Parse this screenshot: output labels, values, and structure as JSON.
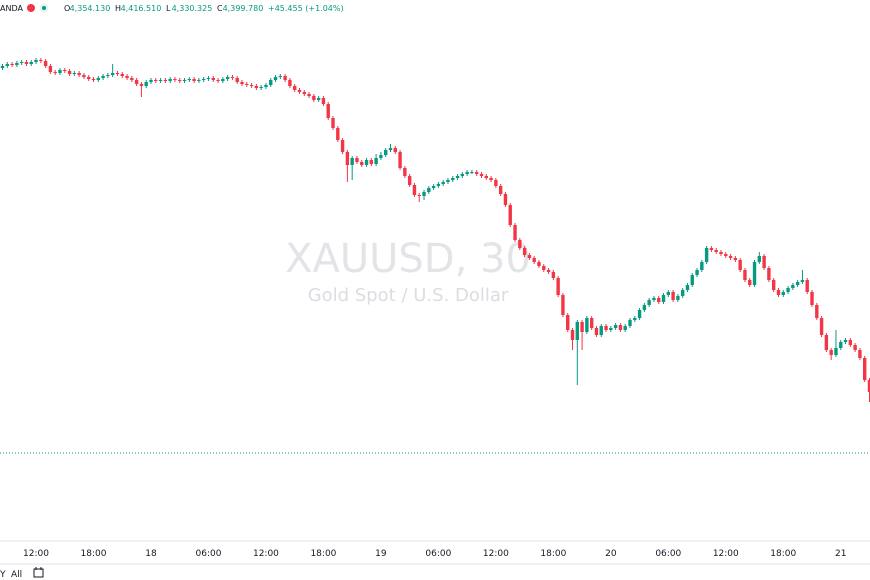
{
  "header": {
    "symbol": "ANDA",
    "ohlc": [
      {
        "label": "O",
        "value": "4,354.130"
      },
      {
        "label": "H",
        "value": "4,416.510"
      },
      {
        "label": "L",
        "value": "4,330.325"
      },
      {
        "label": "C",
        "value": "4,399.780"
      }
    ],
    "change": "+45.455 (+1.04%)"
  },
  "toolbar": {
    "left": "Y",
    "all": "All"
  },
  "chart_data": {
    "type": "candlestick",
    "title": "XAUUSD, 30",
    "subtitle": "Gold Spot / U.S. Dollar",
    "up_color": "#089981",
    "down_color": "#f23645",
    "ylim": [
      3960,
      4500
    ],
    "price_line": 4047,
    "price_line_color": "#089981",
    "categories": [
      null,
      null,
      null,
      null,
      null,
      null,
      null,
      "12:00",
      null,
      null,
      null,
      null,
      null,
      null,
      null,
      null,
      null,
      null,
      null,
      "18:00",
      null,
      null,
      null,
      null,
      null,
      null,
      null,
      null,
      null,
      null,
      null,
      "18",
      null,
      null,
      null,
      null,
      null,
      null,
      null,
      null,
      null,
      null,
      null,
      "06:00",
      null,
      null,
      null,
      null,
      null,
      null,
      null,
      null,
      null,
      null,
      null,
      "12:00",
      null,
      null,
      null,
      null,
      null,
      null,
      null,
      null,
      null,
      null,
      null,
      "18:00",
      null,
      null,
      null,
      null,
      null,
      null,
      null,
      null,
      null,
      null,
      null,
      "19",
      null,
      null,
      null,
      null,
      null,
      null,
      null,
      null,
      null,
      null,
      null,
      "06:00",
      null,
      null,
      null,
      null,
      null,
      null,
      null,
      null,
      null,
      null,
      null,
      "12:00",
      null,
      null,
      null,
      null,
      null,
      null,
      null,
      null,
      null,
      null,
      null,
      "18:00",
      null,
      null,
      null,
      null,
      null,
      null,
      null,
      null,
      null,
      null,
      null,
      "20",
      null,
      null,
      null,
      null,
      null,
      null,
      null,
      null,
      null,
      null,
      null,
      "06:00",
      null,
      null,
      null,
      null,
      null,
      null,
      null,
      null,
      null,
      null,
      null,
      "12:00",
      null,
      null,
      null,
      null,
      null,
      null,
      null,
      null,
      null,
      null,
      null,
      "18:00",
      null,
      null,
      null,
      null,
      null,
      null,
      null,
      null,
      null,
      null,
      null,
      "21",
      null,
      null,
      null,
      null,
      null,
      null
    ],
    "open": [
      4432,
      4434,
      4436,
      4435,
      4437,
      4438,
      4436,
      4438,
      4440,
      4439,
      4434,
      4428,
      4427,
      4430,
      4429,
      4426,
      4427,
      4425,
      4423,
      4421,
      4420,
      4422,
      4424,
      4425,
      4427,
      4426,
      4424,
      4422,
      4420,
      4416,
      4414,
      4418,
      4420,
      4419,
      4420,
      4419,
      4421,
      4420,
      4419,
      4420,
      4421,
      4419,
      4420,
      4421,
      4422,
      4420,
      4419,
      4421,
      4423,
      4422,
      4418,
      4416,
      4415,
      4414,
      4412,
      4413,
      4415,
      4420,
      4423,
      4424,
      4420,
      4414,
      4410,
      4408,
      4406,
      4404,
      4400,
      4402,
      4396,
      4382,
      4372,
      4360,
      4348,
      4335,
      4342,
      4338,
      4335,
      4340,
      4336,
      4342,
      4345,
      4350,
      4352,
      4348,
      4332,
      4324,
      4315,
      4305,
      4304,
      4308,
      4312,
      4314,
      4316,
      4318,
      4320,
      4322,
      4324,
      4326,
      4328,
      4328,
      4326,
      4324,
      4322,
      4320,
      4314,
      4306,
      4295,
      4275,
      4260,
      4252,
      4245,
      4242,
      4238,
      4234,
      4230,
      4228,
      4222,
      4205,
      4185,
      4170,
      4160,
      4178,
      4168,
      4182,
      4172,
      4165,
      4174,
      4170,
      4172,
      4175,
      4170,
      4174,
      4180,
      4182,
      4190,
      4195,
      4200,
      4202,
      4198,
      4205,
      4208,
      4200,
      4204,
      4210,
      4215,
      4225,
      4230,
      4238,
      4252,
      4250,
      4248,
      4246,
      4244,
      4242,
      4240,
      4230,
      4220,
      4215,
      4238,
      4244,
      4232,
      4220,
      4210,
      4205,
      4208,
      4212,
      4215,
      4218,
      4220,
      4208,
      4195,
      4182,
      4165,
      4150,
      4145,
      4152,
      4158,
      4160,
      4155,
      4150,
      4142,
      4120
    ],
    "high": [
      4436,
      4438,
      4438,
      4439,
      4440,
      4440,
      4440,
      4442,
      4442,
      4441,
      4436,
      4430,
      4432,
      4432,
      4431,
      4429,
      4429,
      4427,
      4425,
      4423,
      4424,
      4426,
      4427,
      4436,
      4429,
      4428,
      4426,
      4424,
      4422,
      4418,
      4420,
      4422,
      4422,
      4422,
      4422,
      4423,
      4423,
      4422,
      4422,
      4423,
      4423,
      4422,
      4423,
      4424,
      4424,
      4422,
      4423,
      4425,
      4425,
      4424,
      4420,
      4418,
      4417,
      4416,
      4415,
      4417,
      4422,
      4425,
      4426,
      4426,
      4422,
      4416,
      4412,
      4410,
      4408,
      4406,
      4404,
      4404,
      4398,
      4384,
      4374,
      4362,
      4350,
      4344,
      4344,
      4340,
      4342,
      4342,
      4346,
      4348,
      4352,
      4356,
      4354,
      4350,
      4334,
      4326,
      4317,
      4307,
      4310,
      4314,
      4316,
      4318,
      4320,
      4322,
      4324,
      4326,
      4328,
      4330,
      4330,
      4330,
      4328,
      4326,
      4324,
      4322,
      4316,
      4308,
      4297,
      4277,
      4262,
      4254,
      4247,
      4244,
      4240,
      4236,
      4232,
      4230,
      4224,
      4207,
      4187,
      4172,
      4180,
      4180,
      4184,
      4184,
      4174,
      4176,
      4176,
      4174,
      4177,
      4177,
      4176,
      4182,
      4184,
      4192,
      4197,
      4202,
      4204,
      4204,
      4207,
      4210,
      4210,
      4206,
      4212,
      4217,
      4227,
      4232,
      4240,
      4254,
      4254,
      4252,
      4250,
      4248,
      4246,
      4244,
      4242,
      4232,
      4222,
      4240,
      4248,
      4246,
      4234,
      4222,
      4212,
      4210,
      4214,
      4217,
      4220,
      4230,
      4222,
      4210,
      4197,
      4184,
      4167,
      4152,
      4170,
      4160,
      4162,
      4162,
      4157,
      4152,
      4144,
      4122
    ],
    "low": [
      4430,
      4432,
      4433,
      4433,
      4435,
      4434,
      4434,
      4436,
      4437,
      4432,
      4426,
      4425,
      4425,
      4427,
      4424,
      4424,
      4423,
      4421,
      4419,
      4418,
      4418,
      4420,
      4422,
      4423,
      4424,
      4422,
      4420,
      4418,
      4414,
      4403,
      4412,
      4416,
      4417,
      4417,
      4417,
      4417,
      4418,
      4417,
      4417,
      4418,
      4417,
      4417,
      4418,
      4419,
      4418,
      4417,
      4417,
      4419,
      4420,
      4416,
      4414,
      4413,
      4412,
      4410,
      4410,
      4411,
      4413,
      4418,
      4421,
      4418,
      4412,
      4408,
      4406,
      4404,
      4402,
      4398,
      4398,
      4394,
      4380,
      4370,
      4358,
      4346,
      4318,
      4320,
      4336,
      4333,
      4333,
      4334,
      4334,
      4340,
      4343,
      4348,
      4346,
      4330,
      4322,
      4313,
      4303,
      4298,
      4300,
      4306,
      4310,
      4312,
      4314,
      4316,
      4318,
      4320,
      4322,
      4324,
      4326,
      4324,
      4322,
      4320,
      4318,
      4312,
      4304,
      4293,
      4273,
      4258,
      4250,
      4243,
      4240,
      4236,
      4232,
      4228,
      4226,
      4220,
      4203,
      4183,
      4168,
      4150,
      4115,
      4150,
      4166,
      4170,
      4163,
      4163,
      4168,
      4168,
      4170,
      4168,
      4168,
      4172,
      4178,
      4180,
      4188,
      4193,
      4198,
      4196,
      4196,
      4203,
      4198,
      4198,
      4202,
      4208,
      4213,
      4223,
      4228,
      4236,
      4248,
      4246,
      4244,
      4242,
      4240,
      4238,
      4228,
      4218,
      4213,
      4213,
      4236,
      4230,
      4218,
      4208,
      4203,
      4203,
      4206,
      4210,
      4213,
      4216,
      4206,
      4193,
      4180,
      4163,
      4148,
      4140,
      4143,
      4150,
      4156,
      4153,
      4148,
      4140,
      4118,
      4098
    ],
    "close": [
      4434,
      4436,
      4435,
      4437,
      4438,
      4436,
      4438,
      4440,
      4439,
      4434,
      4428,
      4427,
      4430,
      4429,
      4426,
      4427,
      4425,
      4423,
      4421,
      4420,
      4422,
      4424,
      4425,
      4427,
      4426,
      4424,
      4422,
      4420,
      4416,
      4414,
      4418,
      4420,
      4419,
      4420,
      4419,
      4421,
      4420,
      4419,
      4420,
      4421,
      4419,
      4420,
      4421,
      4422,
      4420,
      4419,
      4421,
      4423,
      4422,
      4418,
      4416,
      4415,
      4414,
      4412,
      4413,
      4415,
      4420,
      4423,
      4424,
      4420,
      4414,
      4410,
      4408,
      4406,
      4404,
      4400,
      4402,
      4396,
      4382,
      4372,
      4360,
      4348,
      4335,
      4342,
      4338,
      4335,
      4340,
      4336,
      4342,
      4345,
      4350,
      4352,
      4348,
      4332,
      4324,
      4315,
      4305,
      4304,
      4308,
      4312,
      4314,
      4316,
      4318,
      4320,
      4322,
      4324,
      4326,
      4328,
      4328,
      4326,
      4324,
      4322,
      4320,
      4314,
      4306,
      4295,
      4275,
      4260,
      4252,
      4245,
      4242,
      4238,
      4234,
      4230,
      4228,
      4222,
      4205,
      4185,
      4170,
      4160,
      4178,
      4168,
      4182,
      4172,
      4165,
      4174,
      4170,
      4172,
      4175,
      4170,
      4174,
      4180,
      4182,
      4190,
      4195,
      4200,
      4202,
      4198,
      4205,
      4208,
      4200,
      4204,
      4210,
      4215,
      4225,
      4230,
      4238,
      4252,
      4250,
      4248,
      4246,
      4244,
      4242,
      4240,
      4230,
      4220,
      4215,
      4238,
      4244,
      4232,
      4220,
      4210,
      4205,
      4208,
      4212,
      4215,
      4218,
      4220,
      4208,
      4195,
      4182,
      4165,
      4150,
      4145,
      4152,
      4158,
      4160,
      4155,
      4150,
      4142,
      4120,
      4108
    ]
  }
}
